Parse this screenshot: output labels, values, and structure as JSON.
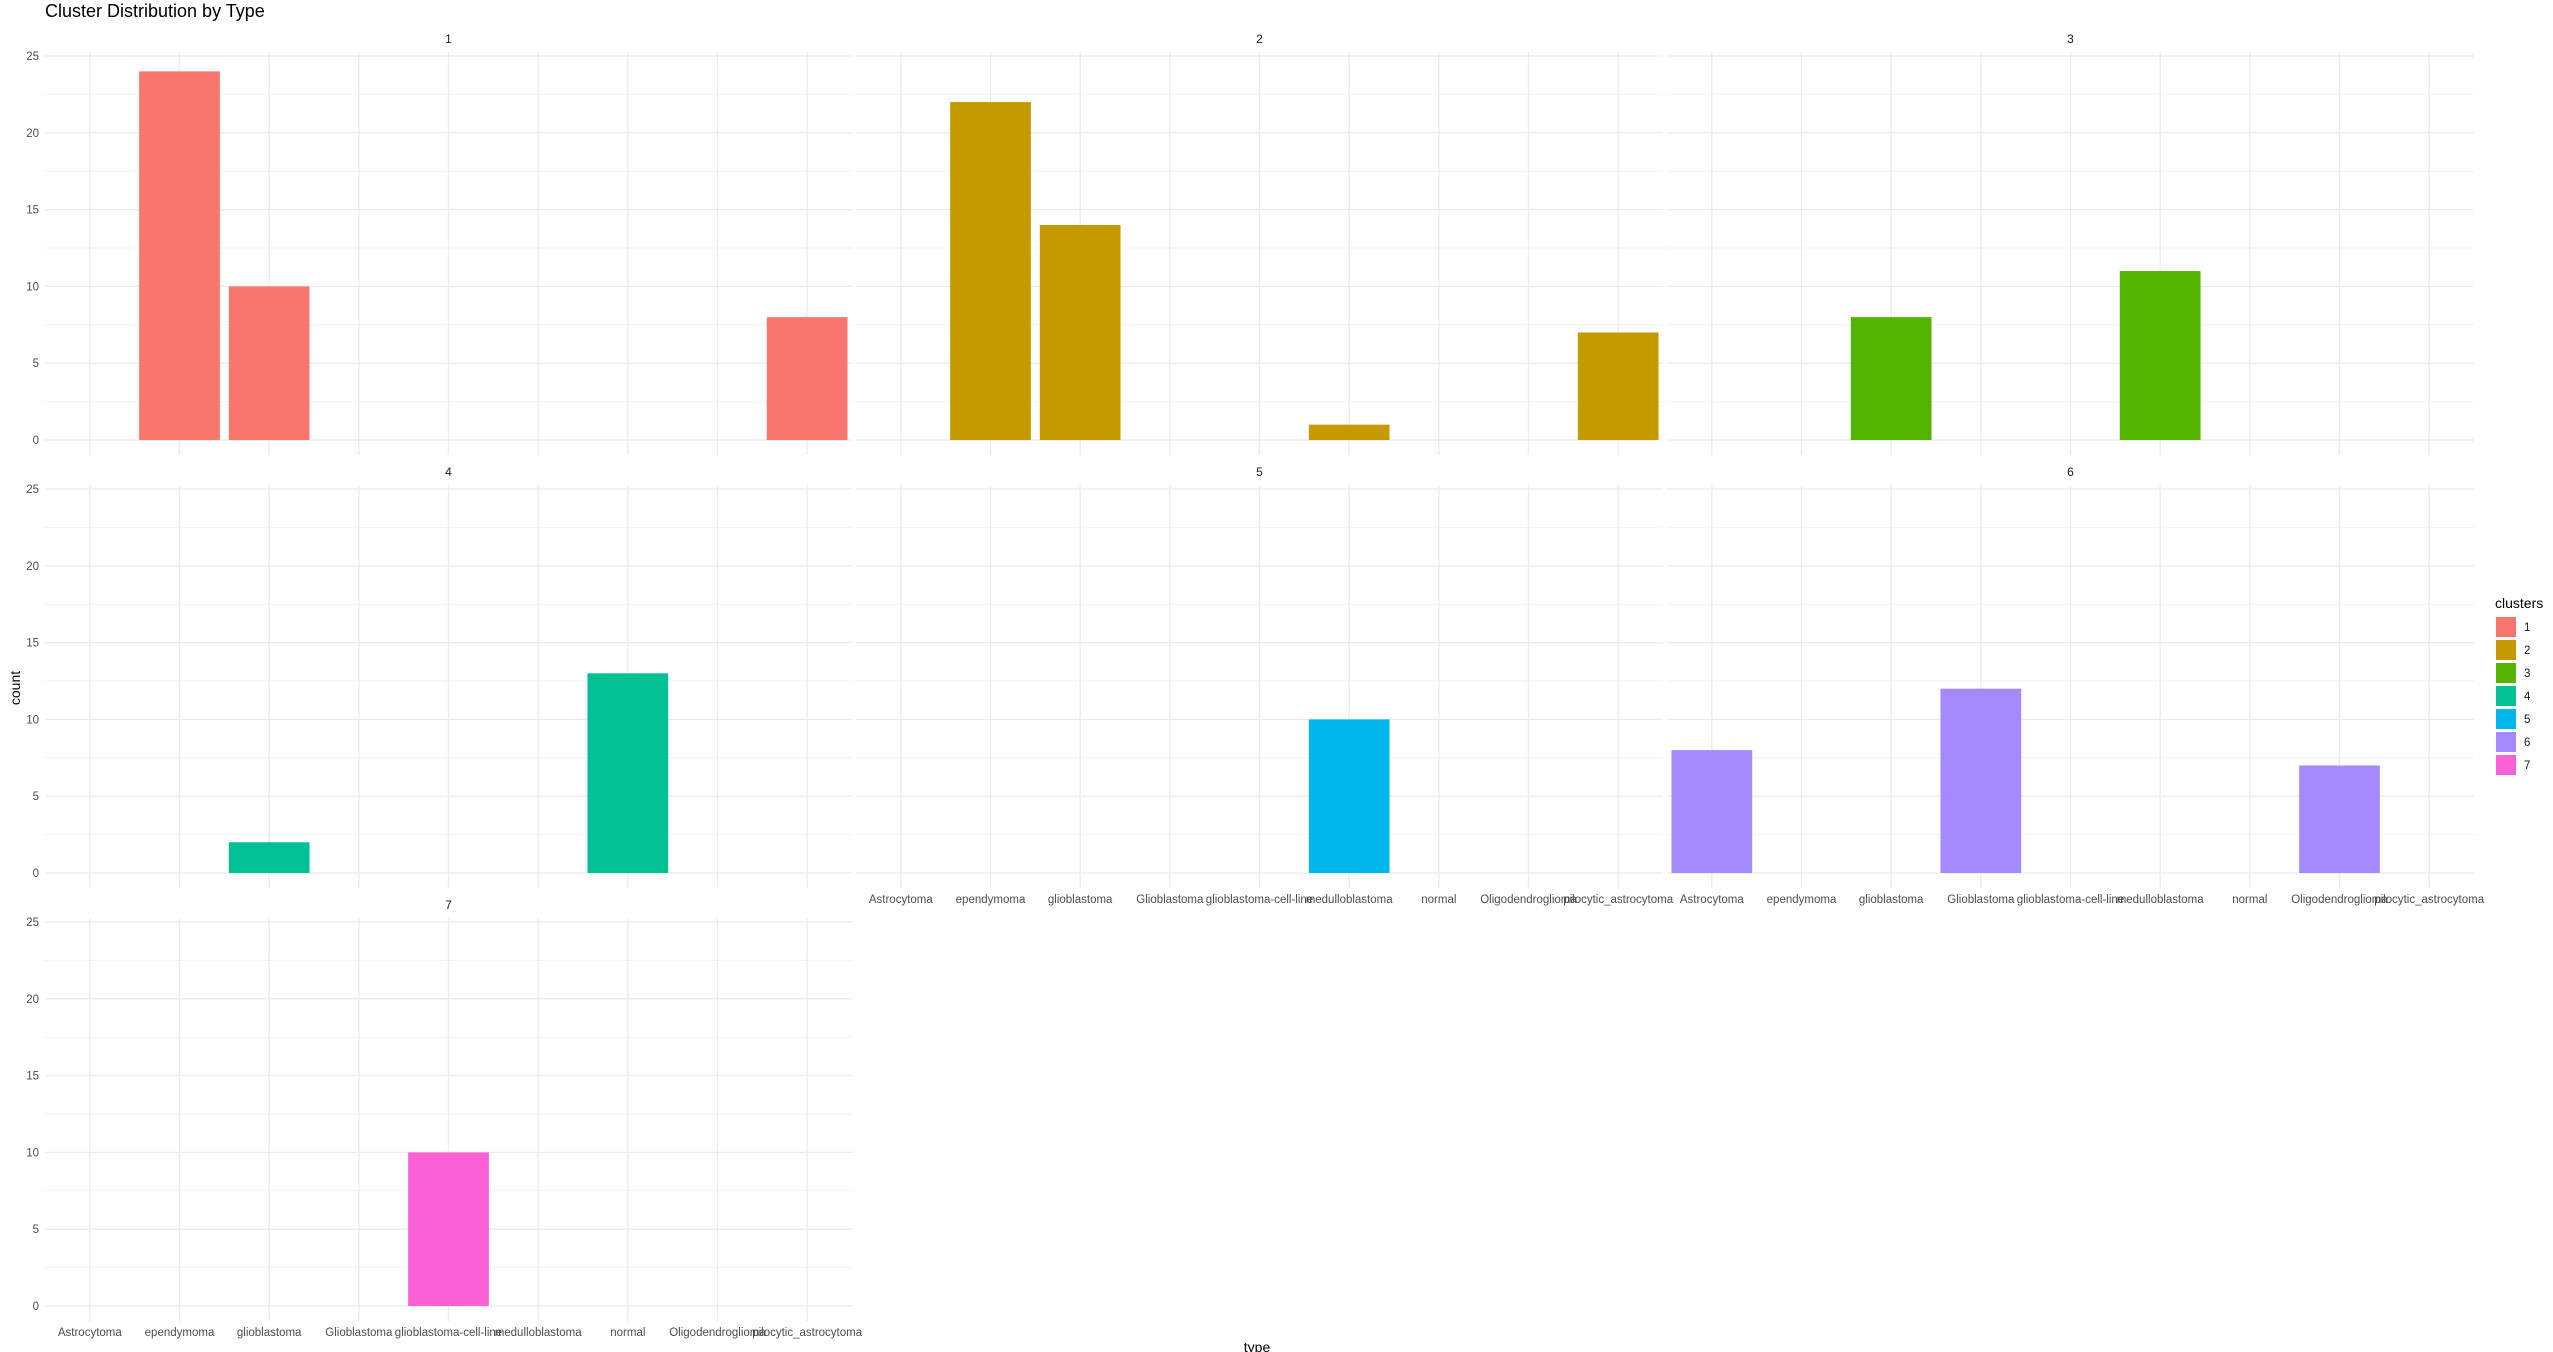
{
  "chart_data": {
    "type": "bar",
    "title": "Cluster Distribution by Type",
    "xlabel": "type",
    "ylabel": "count",
    "ylim": [
      0,
      25
    ],
    "yticks": [
      0,
      5,
      10,
      15,
      20,
      25
    ],
    "grid": true,
    "legend_position": "right",
    "legend_title": "clusters",
    "categories": [
      "Astrocytoma",
      "ependymoma",
      "glioblastoma",
      "Glioblastoma",
      "glioblastoma-cell-line",
      "medulloblastoma",
      "normal",
      "Oligodendroglioma",
      "pilocytic_astrocytoma"
    ],
    "panels": [
      {
        "name": "1",
        "color": "#F8766D",
        "values": [
          0,
          24,
          10,
          0,
          0,
          0,
          0,
          0,
          8
        ]
      },
      {
        "name": "2",
        "color": "#C49A00",
        "values": [
          0,
          22,
          14,
          0,
          0,
          1,
          0,
          0,
          7
        ]
      },
      {
        "name": "3",
        "color": "#53B400",
        "values": [
          0,
          0,
          8,
          0,
          0,
          11,
          0,
          0,
          0
        ]
      },
      {
        "name": "4",
        "color": "#00C094",
        "values": [
          0,
          0,
          2,
          0,
          0,
          0,
          13,
          0,
          0
        ]
      },
      {
        "name": "5",
        "color": "#00B6EB",
        "values": [
          0,
          0,
          0,
          0,
          0,
          10,
          0,
          0,
          0
        ]
      },
      {
        "name": "6",
        "color": "#A58AFF",
        "values": [
          8,
          0,
          0,
          12,
          0,
          0,
          0,
          7,
          0
        ]
      },
      {
        "name": "7",
        "color": "#FB61D7",
        "values": [
          0,
          0,
          0,
          0,
          10,
          0,
          0,
          0,
          0
        ]
      }
    ]
  }
}
